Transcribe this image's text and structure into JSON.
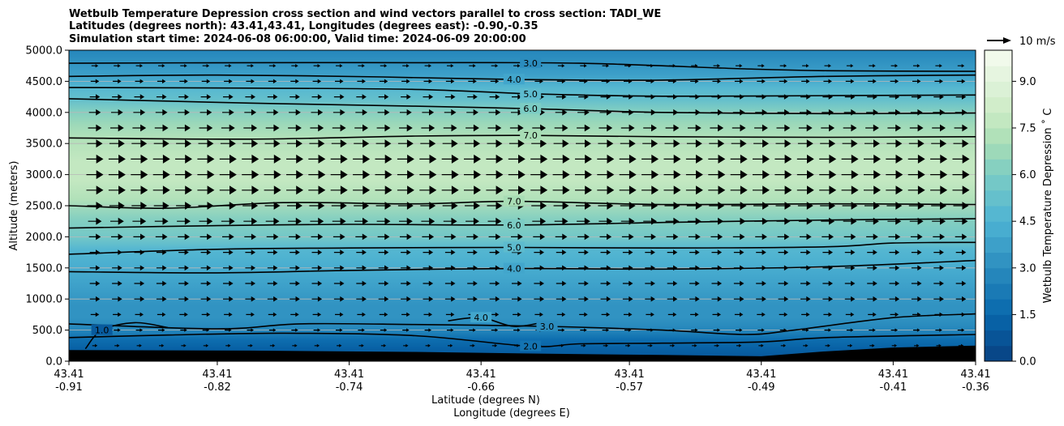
{
  "chart_data": {
    "type": "contourf",
    "title_lines": [
      "Wetbulb Temperature Depression cross section and wind vectors parallel to cross section: TADI_WE",
      "Latitudes (degrees north): 43.41,43.41, Longitudes (degrees east): -0.90,-0.35",
      "Simulation start time: 2024-06-08 06:00:00, Valid time: 2024-06-09 20:00:00"
    ],
    "xlabel_lat": "Latitude (degrees N)",
    "xlabel_lon": "Longitude (degrees E)",
    "ylabel": "Altitude (meters)",
    "xlim": [
      -0.91,
      -0.36
    ],
    "ylim": [
      0,
      5000
    ],
    "x_ticks": [
      {
        "lat": "43.41",
        "lon": "-0.91",
        "value": -0.91
      },
      {
        "lat": "43.41",
        "lon": "-0.82",
        "value": -0.82
      },
      {
        "lat": "43.41",
        "lon": "-0.74",
        "value": -0.74
      },
      {
        "lat": "43.41",
        "lon": "-0.66",
        "value": -0.66
      },
      {
        "lat": "43.41",
        "lon": "-0.57",
        "value": -0.57
      },
      {
        "lat": "43.41",
        "lon": "-0.49",
        "value": -0.49
      },
      {
        "lat": "43.41",
        "lon": "-0.41",
        "value": -0.41
      },
      {
        "lat": "43.41",
        "lon": "-0.36",
        "value": -0.36
      }
    ],
    "y_ticks": [
      {
        "label": "0.0",
        "value": 0
      },
      {
        "label": "500.0",
        "value": 500
      },
      {
        "label": "1000.0",
        "value": 1000
      },
      {
        "label": "1500.0",
        "value": 1500
      },
      {
        "label": "2000.0",
        "value": 2000
      },
      {
        "label": "2500.0",
        "value": 2500
      },
      {
        "label": "3000.0",
        "value": 3000
      },
      {
        "label": "3500.0",
        "value": 3500
      },
      {
        "label": "4000.0",
        "value": 4000
      },
      {
        "label": "4500.0",
        "value": 4500
      },
      {
        "label": "5000.0",
        "value": 5000
      }
    ],
    "colorbar": {
      "label": "Wetbulb Temperature Depression ˚ C",
      "range": [
        0,
        10
      ],
      "step": 0.5,
      "ticks": [
        {
          "label": "0.0",
          "value": 0
        },
        {
          "label": "1.5",
          "value": 1.5
        },
        {
          "label": "3.0",
          "value": 3
        },
        {
          "label": "4.5",
          "value": 4.5
        },
        {
          "label": "6.0",
          "value": 6
        },
        {
          "label": "7.5",
          "value": 7.5
        },
        {
          "label": "9.0",
          "value": 9
        }
      ]
    },
    "vertical_profile": [
      {
        "alt": 5000,
        "value": 2.8
      },
      {
        "alt": 4800,
        "value": 3.0
      },
      {
        "alt": 4600,
        "value": 3.8
      },
      {
        "alt": 4400,
        "value": 4.6
      },
      {
        "alt": 4200,
        "value": 5.4
      },
      {
        "alt": 4000,
        "value": 6.2
      },
      {
        "alt": 3800,
        "value": 6.9
      },
      {
        "alt": 3600,
        "value": 7.3
      },
      {
        "alt": 3200,
        "value": 7.8
      },
      {
        "alt": 2900,
        "value": 7.9
      },
      {
        "alt": 2600,
        "value": 7.2
      },
      {
        "alt": 2300,
        "value": 6.3
      },
      {
        "alt": 2000,
        "value": 5.5
      },
      {
        "alt": 1800,
        "value": 4.9
      },
      {
        "alt": 1500,
        "value": 4.1
      },
      {
        "alt": 1200,
        "value": 3.7
      },
      {
        "alt": 900,
        "value": 3.3
      },
      {
        "alt": 700,
        "value": 3.1
      },
      {
        "alt": 500,
        "value": 2.6
      },
      {
        "alt": 350,
        "value": 1.9
      },
      {
        "alt": 200,
        "value": 1.1
      },
      {
        "alt": 0,
        "value": 0.5
      }
    ],
    "terrain": [
      [
        -0.91,
        180
      ],
      [
        -0.8,
        170
      ],
      [
        -0.7,
        150
      ],
      [
        -0.62,
        120
      ],
      [
        -0.55,
        100
      ],
      [
        -0.49,
        80
      ],
      [
        -0.45,
        160
      ],
      [
        -0.41,
        220
      ],
      [
        -0.36,
        250
      ]
    ],
    "contours": [
      {
        "label": "3.0",
        "label_x": -0.63,
        "points": [
          [
            -0.91,
            4790
          ],
          [
            -0.8,
            4800
          ],
          [
            -0.7,
            4800
          ],
          [
            -0.6,
            4790
          ],
          [
            -0.5,
            4700
          ],
          [
            -0.45,
            4670
          ],
          [
            -0.36,
            4660
          ]
        ]
      },
      {
        "label": "4.0",
        "label_x": -0.64,
        "points": [
          [
            -0.91,
            4580
          ],
          [
            -0.82,
            4600
          ],
          [
            -0.72,
            4570
          ],
          [
            -0.64,
            4530
          ],
          [
            -0.55,
            4520
          ],
          [
            -0.45,
            4580
          ],
          [
            -0.36,
            4600
          ]
        ]
      },
      {
        "label": "5.0",
        "label_x": -0.63,
        "points": [
          [
            -0.91,
            4400
          ],
          [
            -0.8,
            4390
          ],
          [
            -0.7,
            4370
          ],
          [
            -0.63,
            4300
          ],
          [
            -0.55,
            4260
          ],
          [
            -0.45,
            4270
          ],
          [
            -0.36,
            4280
          ]
        ]
      },
      {
        "label": "6.0",
        "label_x": -0.63,
        "points": [
          [
            -0.91,
            4220
          ],
          [
            -0.8,
            4150
          ],
          [
            -0.7,
            4100
          ],
          [
            -0.63,
            4060
          ],
          [
            -0.55,
            4000
          ],
          [
            -0.45,
            3980
          ],
          [
            -0.36,
            3990
          ]
        ]
      },
      {
        "label": "7.0",
        "label_x": -0.63,
        "points": [
          [
            -0.91,
            3590
          ],
          [
            -0.8,
            3570
          ],
          [
            -0.7,
            3620
          ],
          [
            -0.63,
            3630
          ],
          [
            -0.55,
            3610
          ],
          [
            -0.45,
            3600
          ],
          [
            -0.36,
            3610
          ]
        ]
      },
      {
        "label": "7.0",
        "label_x": -0.64,
        "points": [
          [
            -0.91,
            2500
          ],
          [
            -0.85,
            2460
          ],
          [
            -0.78,
            2550
          ],
          [
            -0.7,
            2530
          ],
          [
            -0.64,
            2570
          ],
          [
            -0.55,
            2520
          ],
          [
            -0.45,
            2530
          ],
          [
            -0.36,
            2520
          ]
        ]
      },
      {
        "label": "6.0",
        "label_x": -0.64,
        "points": [
          [
            -0.91,
            2140
          ],
          [
            -0.82,
            2180
          ],
          [
            -0.74,
            2200
          ],
          [
            -0.64,
            2190
          ],
          [
            -0.55,
            2230
          ],
          [
            -0.45,
            2270
          ],
          [
            -0.36,
            2290
          ]
        ]
      },
      {
        "label": "5.0",
        "label_x": -0.64,
        "points": [
          [
            -0.91,
            1720
          ],
          [
            -0.82,
            1800
          ],
          [
            -0.74,
            1820
          ],
          [
            -0.64,
            1830
          ],
          [
            -0.55,
            1820
          ],
          [
            -0.45,
            1840
          ],
          [
            -0.41,
            1900
          ],
          [
            -0.36,
            1910
          ]
        ]
      },
      {
        "label": "4.0",
        "label_x": -0.64,
        "points": [
          [
            -0.91,
            1440
          ],
          [
            -0.82,
            1420
          ],
          [
            -0.74,
            1460
          ],
          [
            -0.64,
            1490
          ],
          [
            -0.55,
            1480
          ],
          [
            -0.45,
            1520
          ],
          [
            -0.36,
            1620
          ]
        ]
      },
      {
        "label": "3.0",
        "label_x": -0.62,
        "points": [
          [
            -0.91,
            600
          ],
          [
            -0.82,
            520
          ],
          [
            -0.77,
            600
          ],
          [
            -0.7,
            590
          ],
          [
            -0.62,
            560
          ],
          [
            -0.55,
            500
          ],
          [
            -0.5,
            430
          ],
          [
            -0.47,
            500
          ],
          [
            -0.41,
            700
          ],
          [
            -0.36,
            760
          ]
        ]
      },
      {
        "label": "2.0",
        "label_x": -0.63,
        "points": [
          [
            -0.91,
            380
          ],
          [
            -0.85,
            420
          ],
          [
            -0.78,
            450
          ],
          [
            -0.7,
            410
          ],
          [
            -0.63,
            240
          ],
          [
            -0.6,
            280
          ],
          [
            -0.55,
            290
          ],
          [
            -0.49,
            310
          ],
          [
            -0.45,
            380
          ],
          [
            -0.36,
            430
          ]
        ]
      },
      {
        "label": "4.0",
        "label_x": -0.66,
        "points": [
          [
            -0.68,
            650
          ],
          [
            -0.66,
            700
          ],
          [
            -0.64,
            560
          ],
          [
            -0.62,
            640
          ]
        ]
      },
      {
        "label": "1.0",
        "label_x": -0.89,
        "points": [
          [
            -0.9,
            200
          ],
          [
            -0.89,
            500
          ],
          [
            -0.87,
            620
          ],
          [
            -0.85,
            540
          ]
        ]
      }
    ],
    "wind": {
      "reference_label": "10 m/s",
      "rows": [
        {
          "alt": 4750,
          "speed": 4
        },
        {
          "alt": 4500,
          "speed": 5
        },
        {
          "alt": 4250,
          "speed": 6
        },
        {
          "alt": 4000,
          "speed": 7
        },
        {
          "alt": 3750,
          "speed": 8
        },
        {
          "alt": 3500,
          "speed": 9
        },
        {
          "alt": 3250,
          "speed": 10
        },
        {
          "alt": 3000,
          "speed": 10
        },
        {
          "alt": 2750,
          "speed": 10
        },
        {
          "alt": 2500,
          "speed": 9
        },
        {
          "alt": 2250,
          "speed": 8
        },
        {
          "alt": 2000,
          "speed": 7
        },
        {
          "alt": 1750,
          "speed": 6
        },
        {
          "alt": 1500,
          "speed": 6
        },
        {
          "alt": 1250,
          "speed": 6
        },
        {
          "alt": 1000,
          "speed": 6
        },
        {
          "alt": 750,
          "speed": 5
        },
        {
          "alt": 500,
          "speed": 4
        },
        {
          "alt": 250,
          "speed": 3
        }
      ],
      "x_count": 40
    }
  }
}
